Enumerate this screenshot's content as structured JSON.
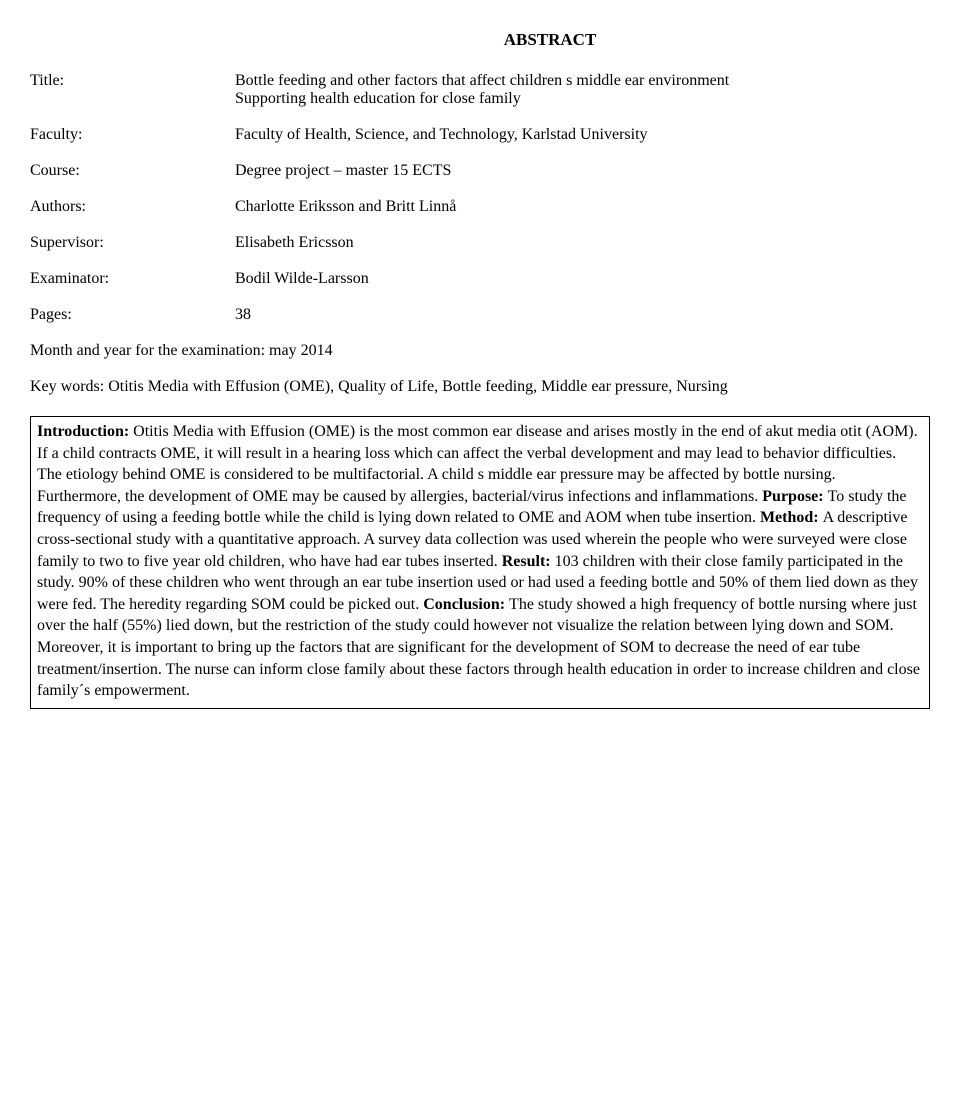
{
  "heading": "ABSTRACT",
  "meta": {
    "title_label": "Title:",
    "title_value": "Bottle feeding and other factors that affect children s middle ear environment Supporting health education for close family",
    "faculty_label": "Faculty:",
    "faculty_value": "Faculty of Health, Science, and Technology, Karlstad University",
    "course_label": "Course:",
    "course_value": "Degree project – master 15 ECTS",
    "authors_label": "Authors:",
    "authors_value": "Charlotte Eriksson and Britt Linnå",
    "supervisor_label": "Supervisor:",
    "supervisor_value": "Elisabeth Ericsson",
    "examinator_label": "Examinator:",
    "examinator_value": "Bodil Wilde-Larsson",
    "pages_label": "Pages:",
    "pages_value": "38"
  },
  "exam_line": "Month and year for the examination: may 2014",
  "keywords": "Key words: Otitis Media with Effusion (OME), Quality of Life, Bottle feeding, Middle ear pressure, Nursing",
  "abstract": {
    "intro_label": "Introduction: ",
    "intro_text": "Otitis Media with Effusion (OME) is the most common ear disease and arises mostly in the end of akut media otit (AOM). If a child contracts OME, it will result in a hearing loss which can affect the verbal development and may lead to behavior difficulties. The etiology behind OME is considered to be multifactorial. A child s middle ear pressure may be affected by bottle nursing. Furthermore, the development of OME may be caused by allergies, bacterial/virus infections and inflammations. ",
    "purpose_label": "Purpose: ",
    "purpose_text": "To study the frequency of using a feeding bottle while the child is lying down related to OME and AOM when tube insertion. ",
    "method_label": "Method: ",
    "method_text": "A descriptive cross-sectional study with a quantitative approach. A survey data collection was used wherein the people who were surveyed were close family to two to five year old children, who have had ear tubes inserted. ",
    "result_label": "Result: ",
    "result_text": "103 children with their close family participated in the study. 90% of these children who went through an ear tube insertion used or had used a feeding bottle and 50% of them lied down as they were fed. The heredity regarding SOM could be picked out. ",
    "conclusion_label": "Conclusion: ",
    "conclusion_text": "The study showed a high frequency of bottle nursing where just over the half (55%) lied down, but the restriction of the study could however not visualize the relation between lying down and SOM. Moreover, it is important to bring up the factors that are significant for the development of SOM to decrease the need of ear tube treatment/insertion. The nurse can inform close family about these factors through health education in order to increase children and close family´s empowerment."
  }
}
